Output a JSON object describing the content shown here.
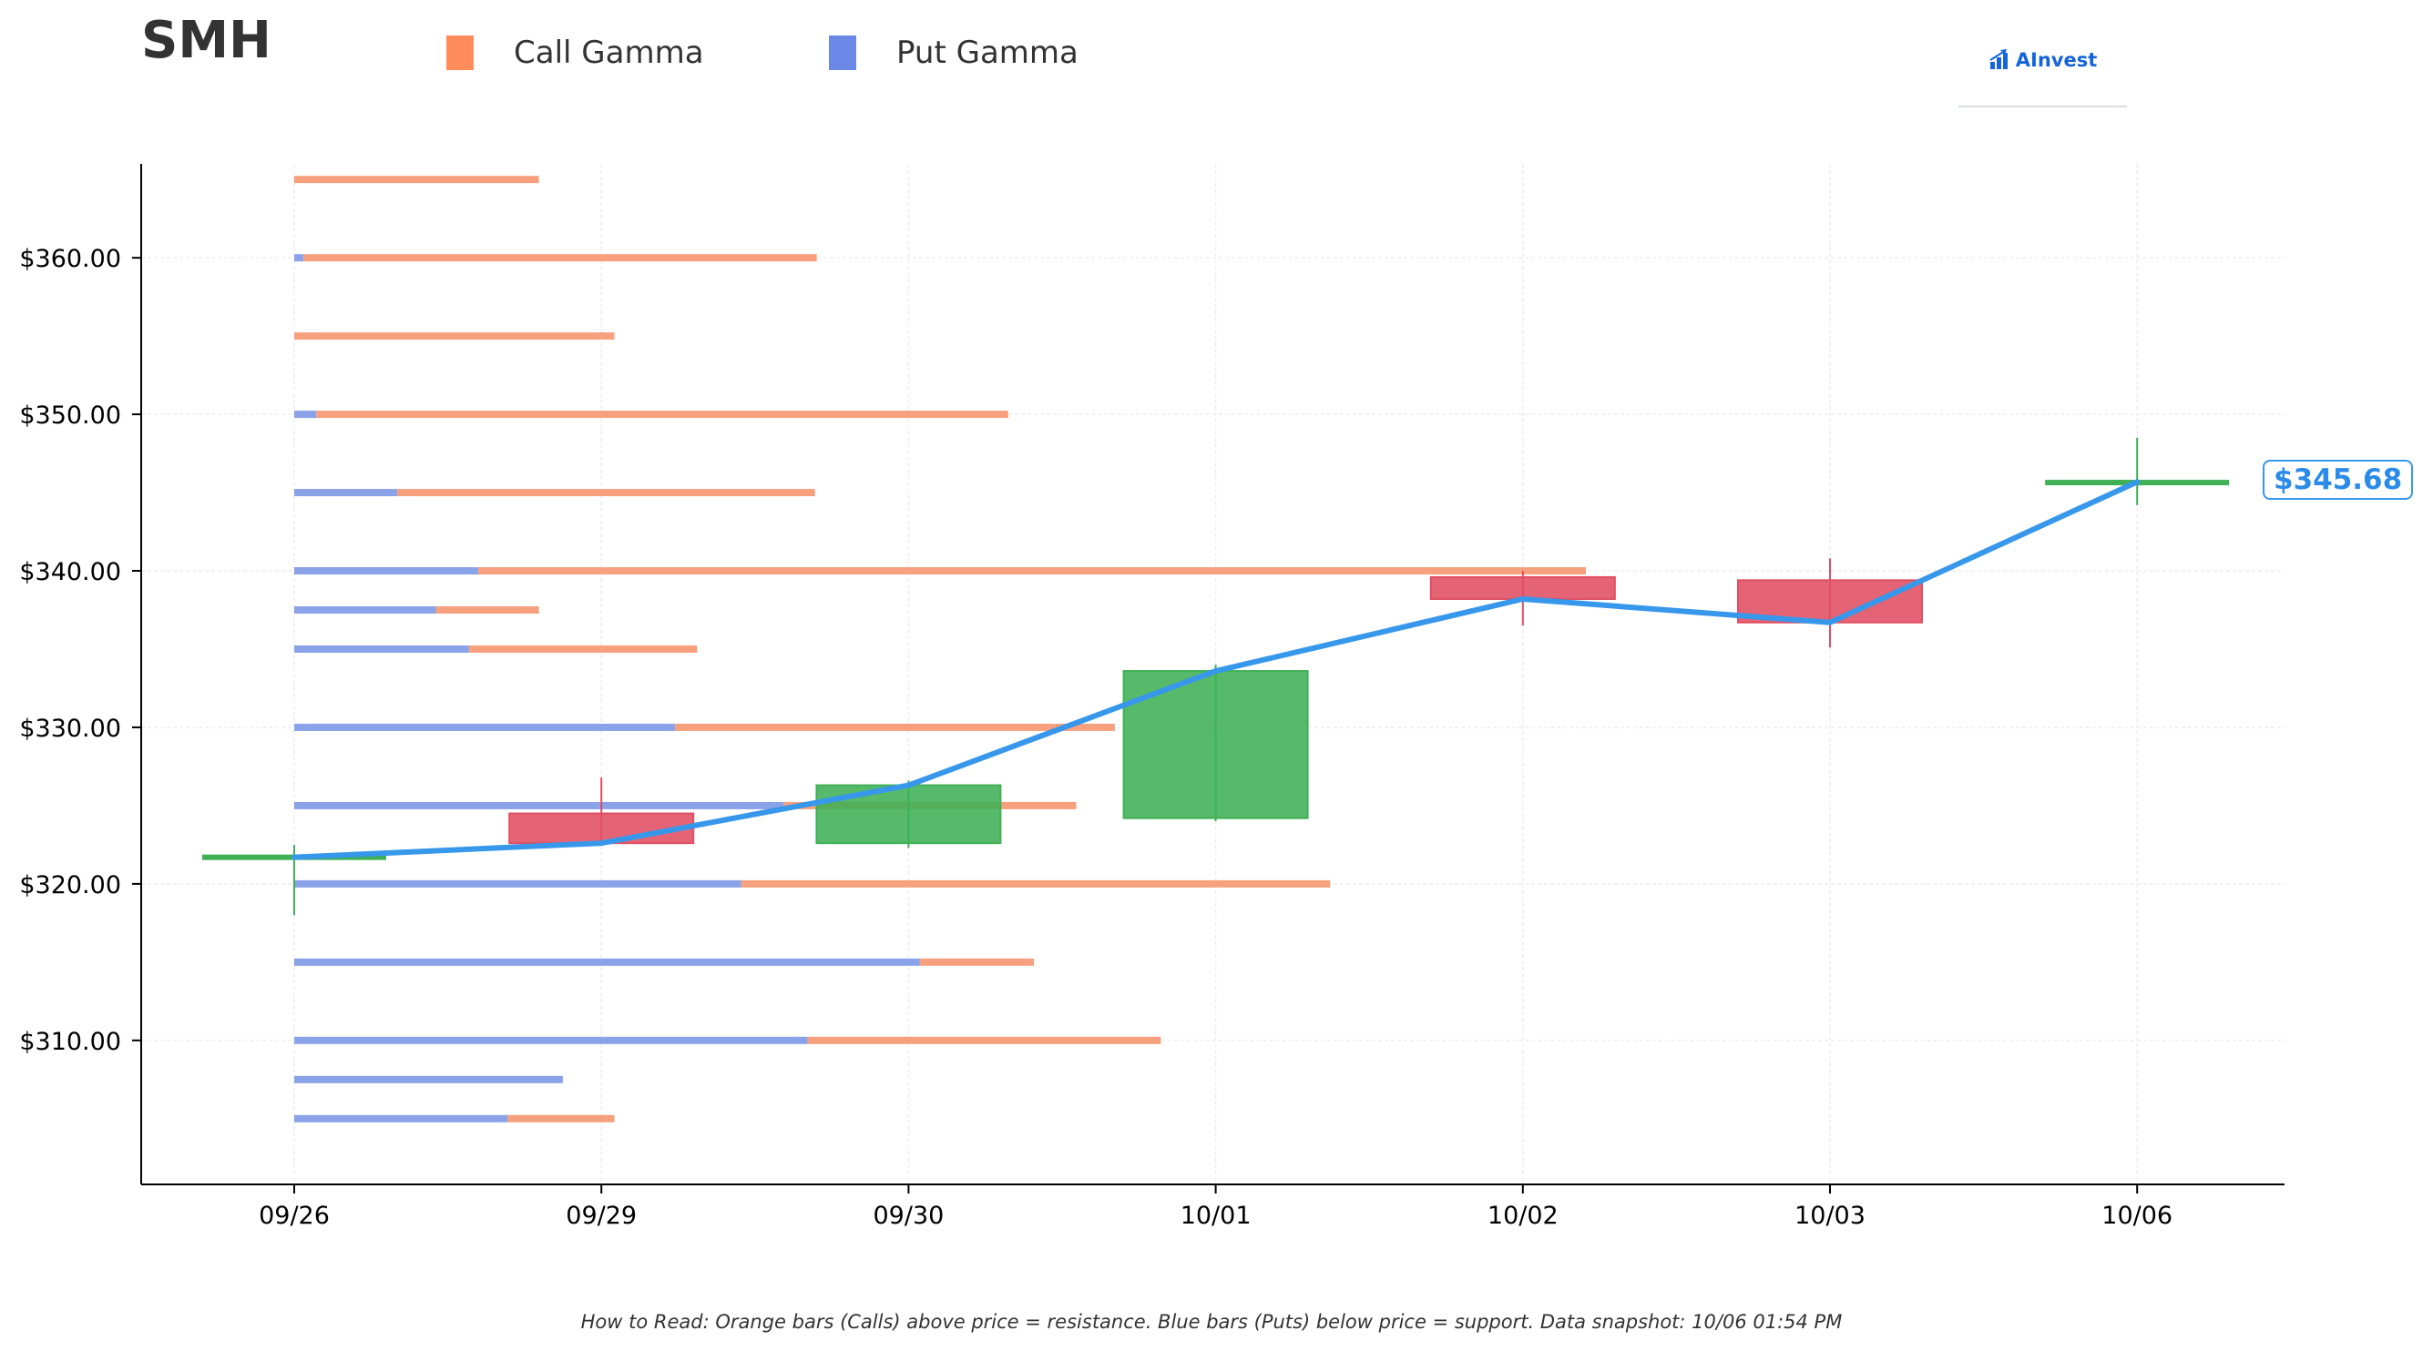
{
  "ticker": "SMH",
  "legend": [
    {
      "label": "Call Gamma",
      "color": "#ff8c5a"
    },
    {
      "label": "Put Gamma",
      "color": "#6b88e6"
    }
  ],
  "logo": {
    "text": "AInvest",
    "icon": "chart-arrow-icon"
  },
  "footer": "How to Read: Orange bars (Calls) above price = resistance. Blue bars (Puts) below price = support. Data snapshot: 10/06 01:54 PM",
  "price_label": "$345.68",
  "colors": {
    "call": "#f7a07e",
    "put": "#8aa2e8",
    "up": "#3fb055",
    "down": "#e04e62",
    "line": "#3797ea"
  },
  "chart_data": {
    "type": "candlestick",
    "categories": [
      "09/26",
      "09/29",
      "09/30",
      "10/01",
      "10/02",
      "10/03",
      "10/06"
    ],
    "yticks": [
      310,
      320,
      330,
      340,
      350,
      360
    ],
    "ytick_labels": [
      "$310.00",
      "$320.00",
      "$330.00",
      "$340.00",
      "$350.00",
      "$360.00"
    ],
    "ylim": [
      300.8,
      366
    ],
    "grid": true,
    "legend_position": "top",
    "candles": [
      {
        "date": "09/26",
        "open": 321.7,
        "high": 322.5,
        "low": 318.0,
        "close": 321.7
      },
      {
        "date": "09/29",
        "open": 324.5,
        "high": 326.8,
        "low": 322.6,
        "close": 322.6
      },
      {
        "date": "09/30",
        "open": 322.6,
        "high": 326.6,
        "low": 322.3,
        "close": 326.3
      },
      {
        "date": "10/01",
        "open": 324.2,
        "high": 334.0,
        "low": 324.0,
        "close": 333.6
      },
      {
        "date": "10/02",
        "open": 339.6,
        "high": 340.0,
        "low": 336.5,
        "close": 338.2
      },
      {
        "date": "10/03",
        "open": 339.4,
        "high": 340.8,
        "low": 335.1,
        "close": 336.7
      },
      {
        "date": "10/06",
        "open": 345.6,
        "high": 348.5,
        "low": 344.2,
        "close": 345.68
      }
    ],
    "close_line": [
      321.7,
      322.6,
      326.3,
      333.6,
      338.2,
      336.7,
      345.68
    ],
    "gamma_bars": [
      {
        "strike": 365,
        "put": 0,
        "call": 1.33
      },
      {
        "strike": 360,
        "put": 0.05,
        "call": 2.79
      },
      {
        "strike": 355,
        "put": 0,
        "call": 1.74
      },
      {
        "strike": 350,
        "put": 0.12,
        "call": 3.76
      },
      {
        "strike": 345,
        "put": 0.56,
        "call": 2.27
      },
      {
        "strike": 340,
        "put": 1.0,
        "call": 6.02
      },
      {
        "strike": 337.5,
        "put": 0.77,
        "call": 0.56
      },
      {
        "strike": 335,
        "put": 0.95,
        "call": 1.24
      },
      {
        "strike": 330,
        "put": 2.07,
        "call": 2.39
      },
      {
        "strike": 325,
        "put": 2.66,
        "call": 1.59
      },
      {
        "strike": 320,
        "put": 2.43,
        "call": 3.2
      },
      {
        "strike": 315,
        "put": 3.4,
        "call": 0.62
      },
      {
        "strike": 310,
        "put": 2.79,
        "call": 1.92
      },
      {
        "strike": 307.5,
        "put": 1.46,
        "call": 0
      },
      {
        "strike": 305,
        "put": 1.16,
        "call": 0.58
      }
    ]
  }
}
